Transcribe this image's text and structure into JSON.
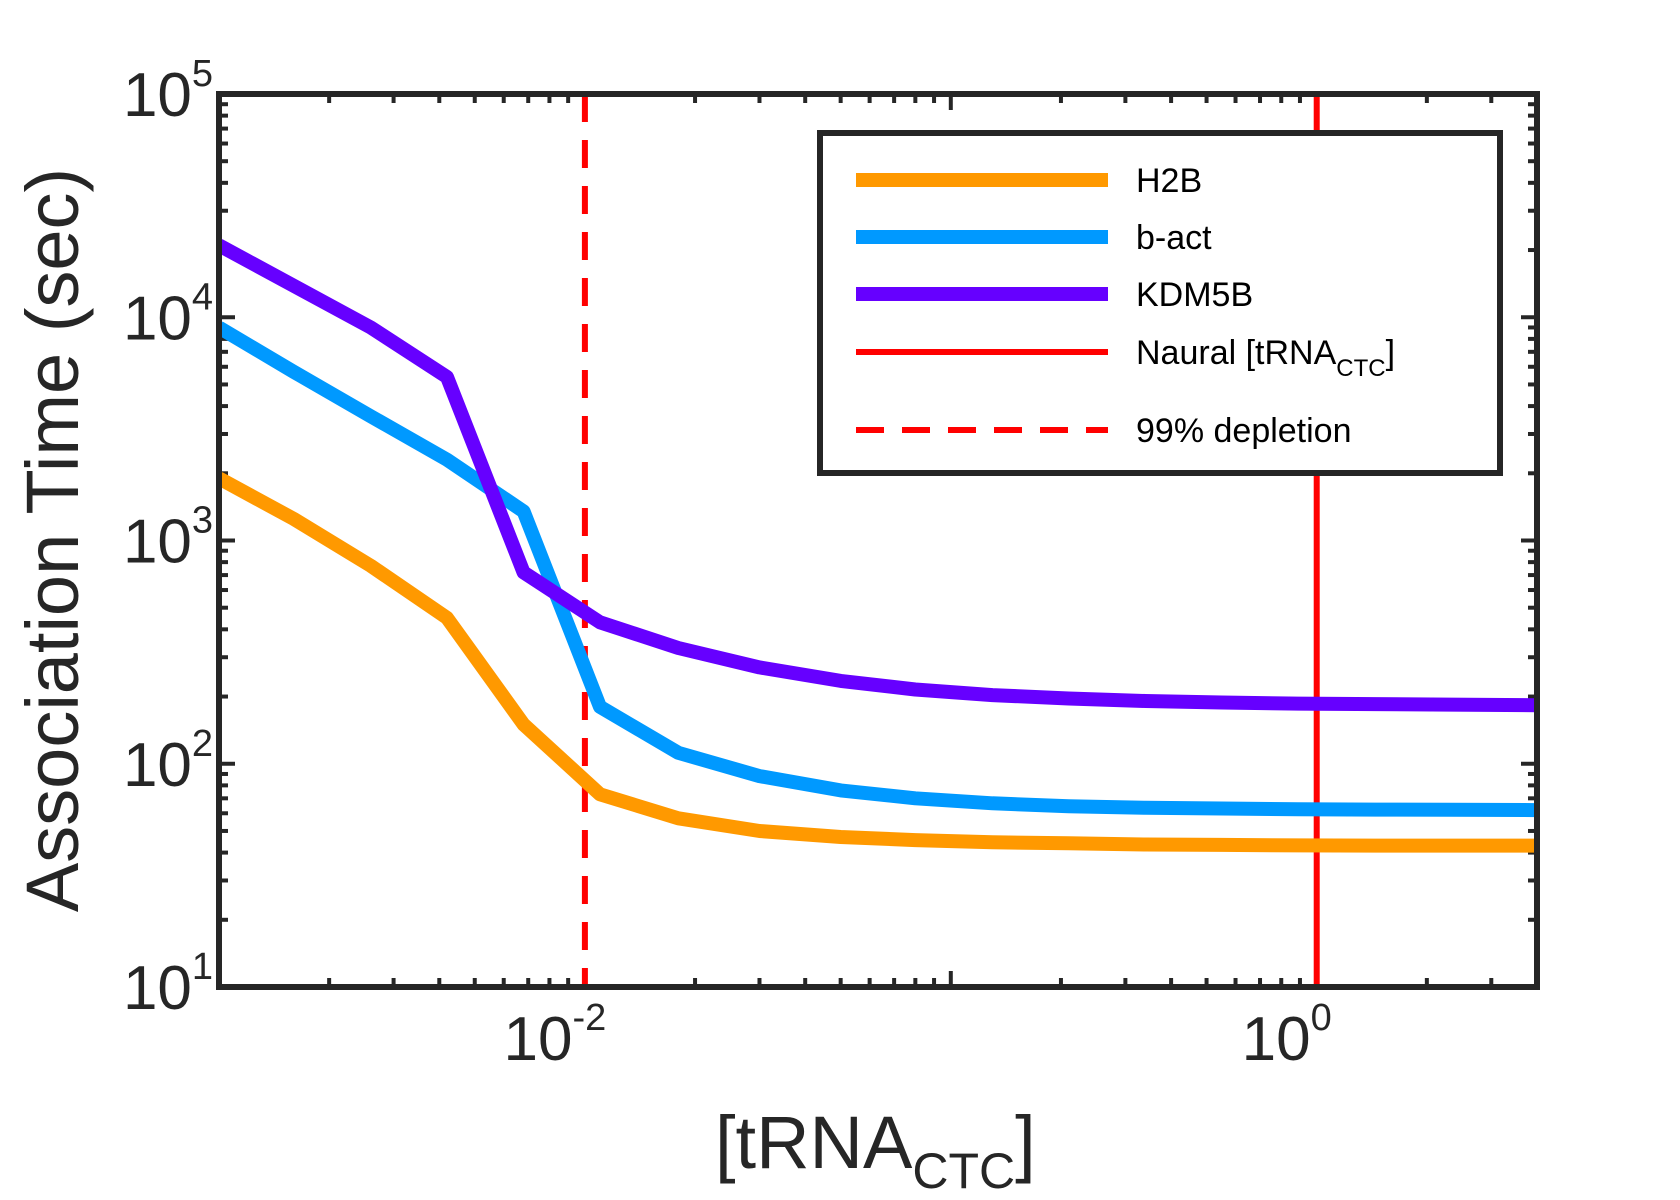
{
  "chart_data": {
    "type": "line",
    "xscale": "log",
    "yscale": "log",
    "xlim": [
      0.001,
      4
    ],
    "ylim": [
      10,
      100000
    ],
    "xlabel": {
      "main": "[tRNA",
      "sub": "CTC",
      "close": "]"
    },
    "ylabel": "Association Time (sec)",
    "x_ticks": [
      {
        "value": 0.01,
        "base": "10",
        "exp": "-2"
      },
      {
        "value": 1,
        "base": "10",
        "exp": "0"
      }
    ],
    "y_ticks": [
      {
        "value": 10,
        "base": "10",
        "exp": "1"
      },
      {
        "value": 100,
        "base": "10",
        "exp": "2"
      },
      {
        "value": 1000,
        "base": "10",
        "exp": "3"
      },
      {
        "value": 10000,
        "base": "10",
        "exp": "4"
      },
      {
        "value": 100000,
        "base": "10",
        "exp": "5"
      }
    ],
    "grid": false,
    "legend_position": "top-right",
    "series": [
      {
        "name": "H2B",
        "color": "#FF9900",
        "x": [
          0.001,
          0.0016,
          0.0026,
          0.0042,
          0.0068,
          0.011,
          0.018,
          0.03,
          0.05,
          0.08,
          0.13,
          0.21,
          0.34,
          0.55,
          0.89,
          1.45,
          2.3,
          4
        ],
        "y": [
          1900,
          1250,
          770,
          450,
          150,
          73,
          57,
          50,
          47,
          45.5,
          44.5,
          44,
          43.5,
          43.3,
          43.1,
          43,
          43,
          43
        ]
      },
      {
        "name": "b-act",
        "color": "#0099FF",
        "x": [
          0.001,
          0.0016,
          0.0026,
          0.0042,
          0.0068,
          0.011,
          0.018,
          0.03,
          0.05,
          0.08,
          0.13,
          0.21,
          0.34,
          0.55,
          0.89,
          1.45,
          2.3,
          4
        ],
        "y": [
          9000,
          5700,
          3600,
          2300,
          1350,
          180,
          112,
          88,
          76,
          70,
          66.5,
          64.5,
          63.5,
          63,
          62.5,
          62.3,
          62.2,
          62
        ]
      },
      {
        "name": "KDM5B",
        "color": "#6600FF",
        "x": [
          0.001,
          0.0026,
          0.0042,
          0.0068,
          0.011,
          0.018,
          0.03,
          0.05,
          0.08,
          0.13,
          0.21,
          0.34,
          0.55,
          0.89,
          1.45,
          2.3,
          4
        ],
        "y": [
          21000,
          9000,
          5400,
          720,
          430,
          330,
          270,
          235,
          215,
          203,
          196,
          191,
          188,
          186,
          185,
          184,
          183
        ]
      }
    ],
    "reference_lines": [
      {
        "name": "Naural [tRNA",
        "name_sub": "CTC",
        "name_close": "]",
        "x": 1,
        "color": "#FF0000",
        "style": "solid"
      },
      {
        "name": "99% depletion",
        "x": 0.01,
        "color": "#FF0000",
        "style": "dashed"
      }
    ]
  }
}
